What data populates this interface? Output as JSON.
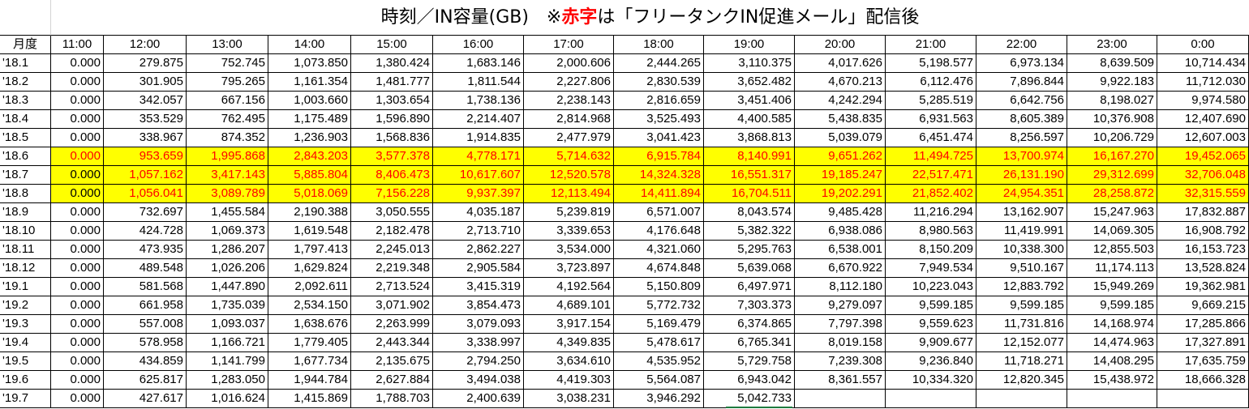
{
  "title": {
    "prefix": "時刻／IN容量(GB)　※",
    "red": "赤字",
    "suffix": "は「フリータンクIN促進メール」配信後"
  },
  "columns": [
    "月度",
    "11:00",
    "12:00",
    "13:00",
    "14:00",
    "15:00",
    "16:00",
    "17:00",
    "18:00",
    "19:00",
    "20:00",
    "21:00",
    "22:00",
    "23:00",
    "0:00"
  ],
  "rows": [
    {
      "label": "'18.1",
      "values": [
        "0.000",
        "279.875",
        "752.745",
        "1,073.850",
        "1,380.424",
        "1,683.146",
        "2,000.606",
        "2,444.265",
        "3,110.375",
        "4,017.626",
        "5,198.577",
        "6,973.134",
        "8,639.509",
        "10,714.434"
      ]
    },
    {
      "label": "'18.2",
      "values": [
        "0.000",
        "301.905",
        "795.265",
        "1,161.354",
        "1,481.777",
        "1,811.544",
        "2,227.806",
        "2,830.539",
        "3,652.482",
        "4,670.213",
        "6,112.476",
        "7,896.844",
        "9,922.183",
        "11,712.030"
      ]
    },
    {
      "label": "'18.3",
      "values": [
        "0.000",
        "342.057",
        "667.156",
        "1,003.660",
        "1,303.654",
        "1,738.136",
        "2,238.143",
        "2,816.659",
        "3,451.406",
        "4,242.294",
        "5,285.519",
        "6,642.756",
        "8,198.027",
        "9,974.580"
      ]
    },
    {
      "label": "'18.4",
      "values": [
        "0.000",
        "353.529",
        "762.495",
        "1,175.489",
        "1,596.890",
        "2,214.407",
        "2,814.968",
        "3,525.493",
        "4,400.585",
        "5,438.835",
        "6,931.563",
        "8,605.389",
        "10,376.908",
        "12,407.690"
      ]
    },
    {
      "label": "'18.5",
      "values": [
        "0.000",
        "338.967",
        "874.352",
        "1,236.903",
        "1,568.836",
        "1,914.835",
        "2,477.979",
        "3,041.423",
        "3,868.813",
        "5,039.079",
        "6,451.474",
        "8,256.597",
        "10,206.729",
        "12,607.003"
      ]
    },
    {
      "label": "'18.6",
      "values": [
        "0.000",
        "953.659",
        "1,995.868",
        "2,843.203",
        "3,577.378",
        "4,778.171",
        "5,714.632",
        "6,915.784",
        "8,140.991",
        "9,651.262",
        "11,494.725",
        "13,700.974",
        "16,167.270",
        "19,452.065"
      ],
      "highlight": true,
      "red_from": 0
    },
    {
      "label": "'18.7",
      "values": [
        "0.000",
        "1,057.162",
        "3,417.143",
        "5,885.804",
        "8,406.473",
        "10,617.607",
        "12,520.578",
        "14,324.328",
        "16,551.317",
        "19,185.247",
        "22,517.471",
        "26,131.190",
        "29,312.699",
        "32,706.048"
      ],
      "highlight": true,
      "red_from": 1
    },
    {
      "label": "'18.8",
      "values": [
        "0.000",
        "1,056.041",
        "3,089.789",
        "5,018.069",
        "7,156.228",
        "9,937.397",
        "12,113.494",
        "14,411.894",
        "16,704.511",
        "19,202.291",
        "21,852.402",
        "24,954.351",
        "28,258.872",
        "32,315.559"
      ],
      "highlight": true,
      "red_from": 1
    },
    {
      "label": "'18.9",
      "values": [
        "0.000",
        "732.697",
        "1,455.584",
        "2,190.388",
        "3,050.555",
        "4,035.187",
        "5,239.819",
        "6,571.007",
        "8,043.574",
        "9,485.428",
        "11,216.294",
        "13,162.907",
        "15,247.963",
        "17,832.887"
      ]
    },
    {
      "label": "'18.10",
      "values": [
        "0.000",
        "424.728",
        "1,069.373",
        "1,619.548",
        "2,182.478",
        "2,713.710",
        "3,339.653",
        "4,176.648",
        "5,382.322",
        "6,938.086",
        "8,980.563",
        "11,419.991",
        "14,069.305",
        "16,908.792"
      ]
    },
    {
      "label": "'18.11",
      "values": [
        "0.000",
        "473.935",
        "1,286.207",
        "1,797.413",
        "2,245.013",
        "2,862.227",
        "3,534.000",
        "4,321.060",
        "5,295.763",
        "6,538.001",
        "8,150.209",
        "10,338.300",
        "12,855.503",
        "16,153.723"
      ]
    },
    {
      "label": "'18.12",
      "values": [
        "0.000",
        "489.548",
        "1,026.206",
        "1,629.824",
        "2,219.348",
        "2,905.584",
        "3,723.897",
        "4,674.848",
        "5,639.068",
        "6,670.922",
        "7,949.534",
        "9,510.167",
        "11,174.113",
        "13,528.824"
      ]
    },
    {
      "label": "'19.1",
      "values": [
        "0.000",
        "581.568",
        "1,447.890",
        "2,092.611",
        "2,713.524",
        "3,415.319",
        "4,192.564",
        "5,150.809",
        "6,497.971",
        "8,112.180",
        "10,223.043",
        "12,883.792",
        "15,949.269",
        "19,362.981"
      ]
    },
    {
      "label": "'19.2",
      "values": [
        "0.000",
        "661.958",
        "1,735.039",
        "2,534.150",
        "3,071.902",
        "3,854.473",
        "4,689.101",
        "5,772.732",
        "7,303.373",
        "9,279.097",
        "9,599.185",
        "9,599.185",
        "9,599.185",
        "9,669.215"
      ]
    },
    {
      "label": "'19.3",
      "values": [
        "0.000",
        "557.008",
        "1,093.037",
        "1,638.676",
        "2,263.999",
        "3,079.093",
        "3,917.154",
        "5,169.479",
        "6,374.865",
        "7,797.398",
        "9,559.623",
        "11,731.816",
        "14,168.974",
        "17,285.866"
      ]
    },
    {
      "label": "'19.4",
      "values": [
        "0.000",
        "578.958",
        "1,166.721",
        "1,779.405",
        "2,443.344",
        "3,338.997",
        "4,349.835",
        "5,478.617",
        "6,765.341",
        "8,019.158",
        "9,909.677",
        "12,152.077",
        "14,474.963",
        "17,327.891"
      ]
    },
    {
      "label": "'19.5",
      "values": [
        "0.000",
        "434.859",
        "1,141.799",
        "1,677.734",
        "2,135.675",
        "2,794.250",
        "3,634.610",
        "4,535.952",
        "5,729.758",
        "7,239.308",
        "9,236.840",
        "11,718.271",
        "14,408.295",
        "17,635.759"
      ]
    },
    {
      "label": "'19.6",
      "values": [
        "0.000",
        "625.817",
        "1,283.050",
        "1,944.784",
        "2,627.884",
        "3,494.038",
        "4,419.303",
        "5,564.087",
        "6,943.042",
        "8,361.557",
        "10,334.320",
        "12,820.345",
        "15,438.972",
        "18,666.328"
      ]
    },
    {
      "label": "'19.7",
      "values": [
        "0.000",
        "427.617",
        "1,016.624",
        "1,415.869",
        "1,788.703",
        "2,400.639",
        "3,038.231",
        "3,946.292",
        "5,042.733",
        "",
        "",
        "",
        "",
        ""
      ]
    }
  ]
}
